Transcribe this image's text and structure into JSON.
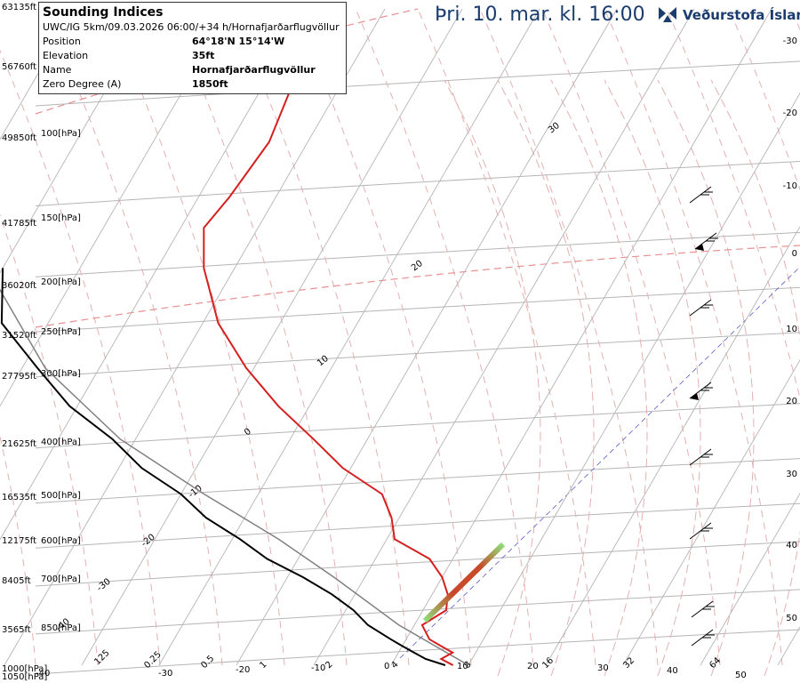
{
  "header": {
    "date_title": "Þri. 10. mar. kl. 16:00",
    "brand_name": "Veðurstofa Íslands"
  },
  "info_box": {
    "title": "Sounding Indices",
    "run_line": "UWC/IG 5km/09.03.2026 06:00/+34 h/Hornafjarðarflugvöllur",
    "rows": [
      {
        "label": "Position",
        "value": "64°18'N 15°14'W"
      },
      {
        "label": "Elevation",
        "value": "35ft"
      },
      {
        "label": "Name",
        "value": "Hornafjarðarflugvöllur"
      },
      {
        "label": "Zero Degree (A)",
        "value": "1850ft"
      }
    ]
  },
  "colors": {
    "temperature": "#d61f1f",
    "dewpoint": "#000000",
    "parcel": "#808080",
    "isotherm": "#b5b5b5",
    "isobar": "#b5b5b5",
    "dry_adiabat": "#e3b1b1",
    "moist_adiabat": "#e3b1b1",
    "brand": "#1b3c6e"
  },
  "chart_data": {
    "type": "line",
    "altitude_labels": [
      "63135ft",
      "56760ft",
      "49850ft",
      "41785ft",
      "36020ft",
      "31520ft",
      "27795ft",
      "21625ft",
      "16535ft",
      "12175ft",
      "8405ft",
      "3565ft",
      "1000[hPa]",
      "1050[hPa]"
    ],
    "pressure_labels": [
      "100[hPa]",
      "150[hPa]",
      "200[hPa]",
      "250[hPa]",
      "300[hPa]",
      "400[hPa]",
      "500[hPa]",
      "600[hPa]",
      "700[hPa]",
      "850[hPa]"
    ],
    "right_axis_labels": [
      "-30",
      "-20",
      "-10",
      "0",
      "10",
      "20",
      "30",
      "40",
      "50"
    ],
    "bottom_labels": [
      "-40",
      "0.25",
      "-30",
      "0.5",
      "-20",
      "1",
      "-10",
      "2",
      "0",
      "4",
      "10",
      "8",
      "20",
      "16",
      "30",
      "32",
      "40",
      "64",
      "50",
      "125"
    ],
    "isotherm_labels": [
      "30",
      "20",
      "10",
      "0",
      "-10",
      "-20",
      "-30",
      "-40"
    ],
    "temperature_profile_hPa_C": [
      [
        1000,
        8
      ],
      [
        975,
        6
      ],
      [
        950,
        7
      ],
      [
        925,
        5
      ],
      [
        900,
        3
      ],
      [
        850,
        1
      ],
      [
        800,
        3
      ],
      [
        750,
        2
      ],
      [
        700,
        0
      ],
      [
        650,
        -3
      ],
      [
        600,
        -9
      ],
      [
        550,
        -11
      ],
      [
        500,
        -14
      ],
      [
        450,
        -21
      ],
      [
        400,
        -27
      ],
      [
        350,
        -34
      ],
      [
        300,
        -41
      ],
      [
        250,
        -48
      ],
      [
        200,
        -54
      ],
      [
        170,
        -57
      ],
      [
        150,
        -56
      ],
      [
        120,
        -55
      ],
      [
        100,
        -56
      ],
      [
        70,
        -58
      ]
    ],
    "dewpoint_profile_hPa_C": [
      [
        1000,
        7
      ],
      [
        975,
        4
      ],
      [
        950,
        2
      ],
      [
        925,
        0
      ],
      [
        900,
        -2
      ],
      [
        850,
        -6
      ],
      [
        800,
        -9
      ],
      [
        750,
        -13
      ],
      [
        700,
        -18
      ],
      [
        650,
        -24
      ],
      [
        600,
        -29
      ],
      [
        550,
        -35
      ],
      [
        500,
        -40
      ],
      [
        450,
        -47
      ],
      [
        400,
        -53
      ],
      [
        350,
        -61
      ],
      [
        300,
        -68
      ],
      [
        250,
        -76
      ],
      [
        200,
        -80
      ]
    ],
    "parcel_profile_hPa_C": [
      [
        1000,
        10
      ],
      [
        850,
        -2
      ],
      [
        700,
        -14
      ],
      [
        600,
        -24
      ],
      [
        500,
        -37
      ],
      [
        400,
        -52
      ],
      [
        300,
        -67
      ],
      [
        200,
        -82
      ]
    ],
    "cape_cin_band": "green-red shaded segment between 850 and 700 hPa",
    "wind_barb_count": 8
  }
}
